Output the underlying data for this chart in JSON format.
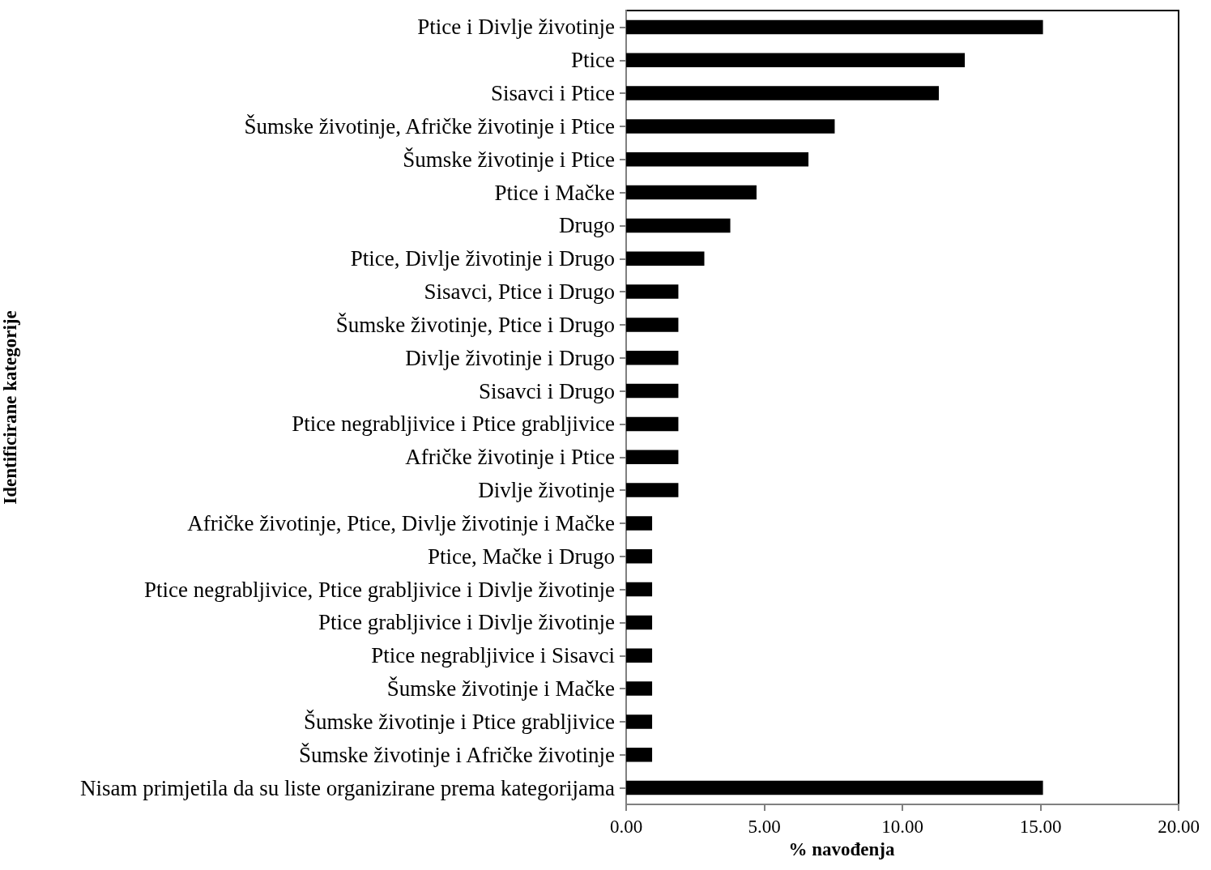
{
  "chart_data": {
    "type": "bar",
    "orientation": "horizontal",
    "xlabel": "% navođenja",
    "ylabel": "Identificirane kategorije",
    "categories": [
      "Ptice i Divlje životinje",
      "Ptice",
      "Sisavci i Ptice",
      "Šumske životinje, Afričke životinje i Ptice",
      "Šumske životinje i Ptice",
      "Ptice i Mačke",
      "Drugo",
      "Ptice, Divlje životinje i Drugo",
      "Sisavci, Ptice i Drugo",
      "Šumske životinje, Ptice i Drugo",
      "Divlje životinje i Drugo",
      "Sisavci i Drugo",
      "Ptice negrabljivice i Ptice grabljivice",
      "Afričke životinje i Ptice",
      "Divlje životinje",
      "Afričke životinje, Ptice, Divlje životinje i Mačke",
      "Ptice, Mačke i Drugo",
      "Ptice negrabljivice, Ptice grabljivice i Divlje životinje",
      "Ptice grabljivice i Divlje životinje",
      "Ptice negrabljivice i Sisavci",
      "Šumske životinje i Mačke",
      "Šumske životinje i Ptice grabljivice",
      "Šumske životinje i Afričke životinje",
      "Nisam primjetila da su liste organizirane prema kategorijama"
    ],
    "values": [
      15.09,
      12.26,
      11.32,
      7.55,
      6.6,
      4.72,
      3.77,
      2.83,
      1.89,
      1.89,
      1.89,
      1.89,
      1.89,
      1.89,
      1.89,
      0.94,
      0.94,
      0.94,
      0.94,
      0.94,
      0.94,
      0.94,
      0.94,
      15.09
    ],
    "color": "#000000",
    "xlim": [
      0,
      20
    ],
    "xticks": [
      {
        "value": 0,
        "label": "0.00"
      },
      {
        "value": 5,
        "label": "5.00"
      },
      {
        "value": 10,
        "label": "10.00"
      },
      {
        "value": 15,
        "label": "15.00"
      },
      {
        "value": 20,
        "label": "20.00"
      }
    ],
    "grid": false
  }
}
